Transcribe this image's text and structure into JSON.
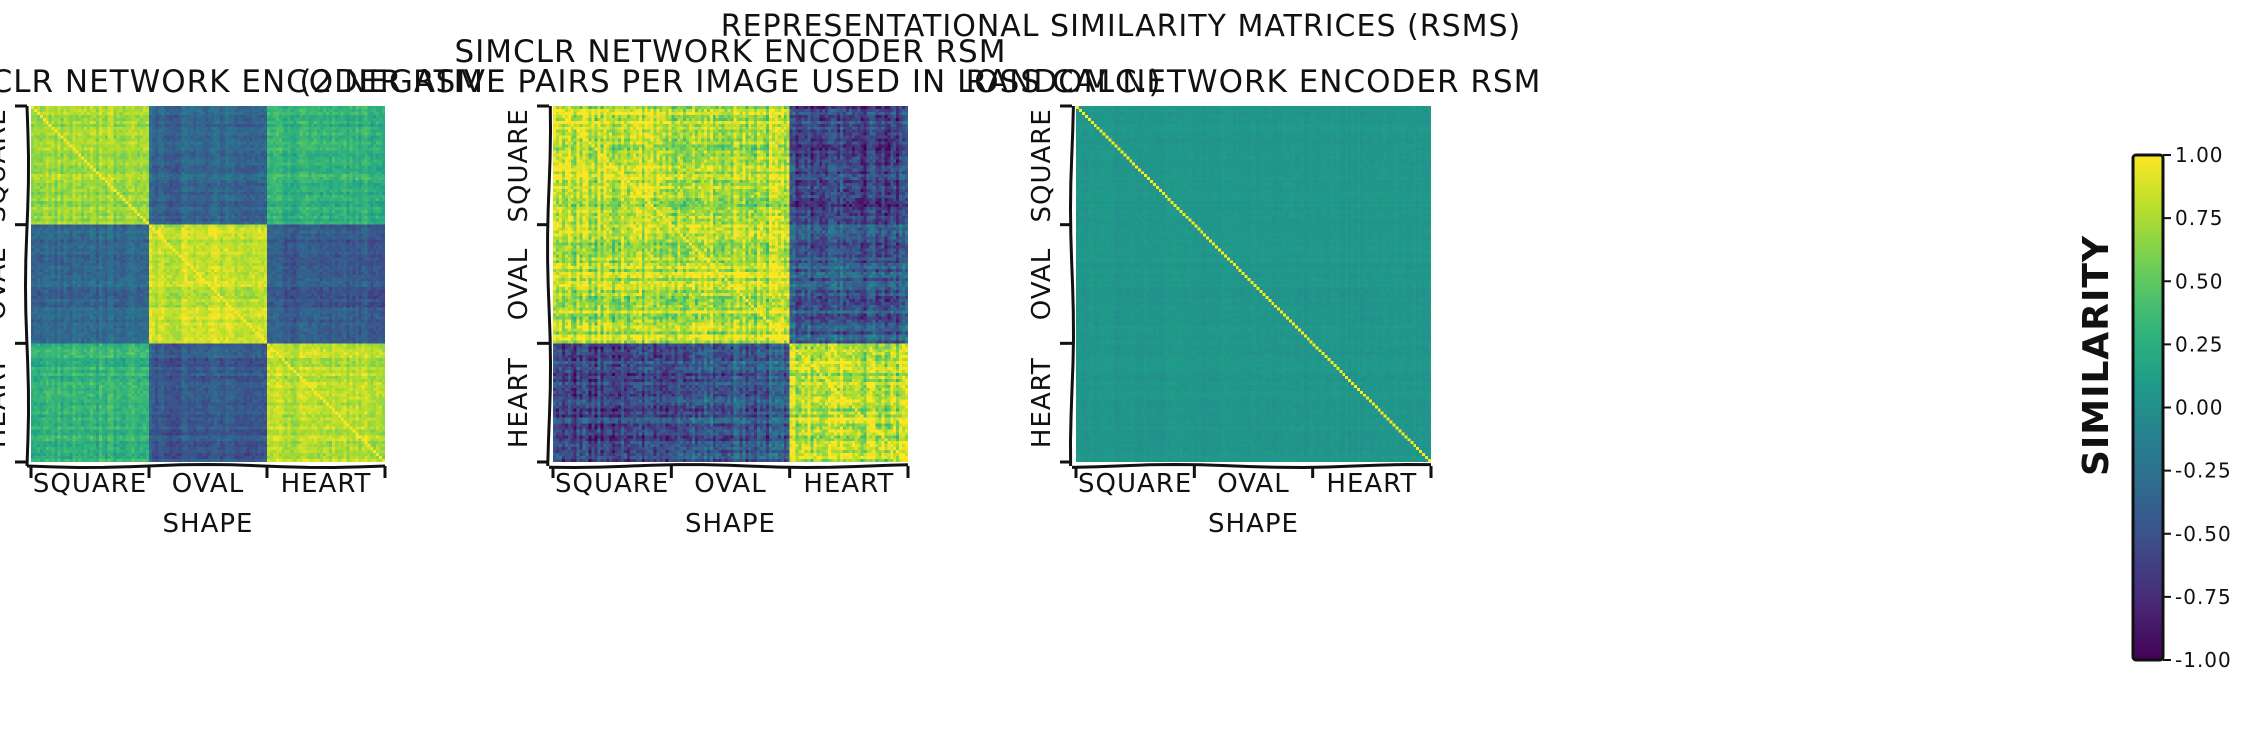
{
  "figure": {
    "suptitle": "REPRESENTATIONAL SIMILARITY MATRICES (RSMS)"
  },
  "colorbar": {
    "label": "SIMILARITY",
    "ticks": [
      "1.00",
      "0.75",
      "0.50",
      "0.25",
      "0.00",
      "-0.25",
      "-0.50",
      "-0.75",
      "-1.00"
    ],
    "colormap": "viridis"
  },
  "chart_data": [
    {
      "type": "heatmap",
      "title_lines": [
        "SIMCLR NETWORK ENCODER RSM"
      ],
      "xlabel": "SHAPE",
      "ylabel": "",
      "categories": [
        "SQUARE",
        "OVAL",
        "HEART"
      ],
      "block_means": [
        [
          0.72,
          -0.35,
          0.3
        ],
        [
          -0.35,
          0.82,
          -0.45
        ],
        [
          0.3,
          -0.45,
          0.78
        ]
      ],
      "noise": 0.22,
      "diagonal_value": 1.0,
      "vlim": [
        -1,
        1
      ]
    },
    {
      "type": "heatmap",
      "title_lines": [
        "SIMCLR NETWORK ENCODER RSM",
        "(2 NEGATIVE PAIRS PER IMAGE USED IN LOSS CALC.)"
      ],
      "xlabel": "SHAPE",
      "ylabel": "",
      "categories": [
        "SQUARE",
        "OVAL",
        "HEART"
      ],
      "block_means": [
        [
          0.8,
          0.75,
          -0.6
        ],
        [
          0.75,
          0.8,
          -0.45
        ],
        [
          -0.6,
          -0.45,
          0.78
        ]
      ],
      "noise": 0.45,
      "diagonal_value": 1.0,
      "vlim": [
        -1,
        1
      ]
    },
    {
      "type": "heatmap",
      "title_lines": [
        "RANDOM NETWORK ENCODER RSM"
      ],
      "xlabel": "SHAPE",
      "ylabel": "",
      "categories": [
        "SQUARE",
        "OVAL",
        "HEART"
      ],
      "block_means": [
        [
          0.05,
          0.05,
          0.05
        ],
        [
          0.05,
          0.05,
          0.05
        ],
        [
          0.05,
          0.05,
          0.05
        ]
      ],
      "noise": 0.06,
      "diagonal_value": 1.0,
      "vlim": [
        -1,
        1
      ]
    }
  ]
}
